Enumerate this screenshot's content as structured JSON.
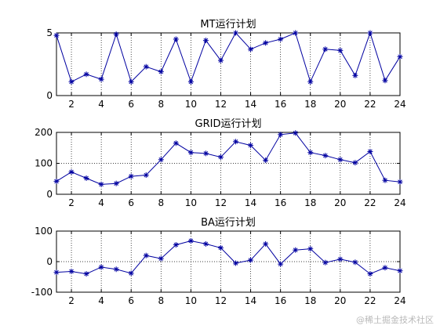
{
  "watermark": "@稀土掘金技术社区",
  "chart_data": [
    {
      "type": "line",
      "title": "MT运行计划",
      "x": [
        1,
        2,
        3,
        4,
        5,
        6,
        7,
        8,
        9,
        10,
        11,
        12,
        13,
        14,
        15,
        16,
        17,
        18,
        19,
        20,
        21,
        22,
        23,
        24
      ],
      "series": [
        {
          "values": [
            4.8,
            1.1,
            1.7,
            1.3,
            4.9,
            1.1,
            2.3,
            1.9,
            4.5,
            1.1,
            4.4,
            2.8,
            5.0,
            3.7,
            4.2,
            4.5,
            5.0,
            1.1,
            3.7,
            3.6,
            1.6,
            5.0,
            1.2,
            3.1
          ],
          "color": "#0000a0",
          "marker": "*"
        }
      ],
      "xlim": [
        1,
        24
      ],
      "ylim": [
        0,
        5
      ],
      "xticks": [
        2,
        4,
        6,
        8,
        10,
        12,
        14,
        16,
        18,
        20,
        22,
        24
      ],
      "yticks": [
        0,
        5
      ],
      "grid": true
    },
    {
      "type": "line",
      "title": "GRID运行计划",
      "x": [
        1,
        2,
        3,
        4,
        5,
        6,
        7,
        8,
        9,
        10,
        11,
        12,
        13,
        14,
        15,
        16,
        17,
        18,
        19,
        20,
        21,
        22,
        23,
        24
      ],
      "series": [
        {
          "values": [
            42,
            72,
            52,
            32,
            35,
            58,
            62,
            112,
            165,
            135,
            132,
            120,
            170,
            158,
            110,
            193,
            198,
            135,
            125,
            112,
            102,
            138,
            45,
            40
          ],
          "color": "#0000a0",
          "marker": "*"
        }
      ],
      "xlim": [
        1,
        24
      ],
      "ylim": [
        0,
        200
      ],
      "xticks": [
        2,
        4,
        6,
        8,
        10,
        12,
        14,
        16,
        18,
        20,
        22,
        24
      ],
      "yticks": [
        0,
        100,
        200
      ],
      "grid": true
    },
    {
      "type": "line",
      "title": "BA运行计划",
      "x": [
        1,
        2,
        3,
        4,
        5,
        6,
        7,
        8,
        9,
        10,
        11,
        12,
        13,
        14,
        15,
        16,
        17,
        18,
        19,
        20,
        21,
        22,
        23,
        24
      ],
      "series": [
        {
          "values": [
            -35,
            -32,
            -40,
            -18,
            -25,
            -38,
            20,
            10,
            55,
            68,
            58,
            45,
            -5,
            5,
            58,
            -8,
            38,
            42,
            -3,
            8,
            -2,
            -40,
            -20,
            -30
          ],
          "color": "#0000a0",
          "marker": "*"
        }
      ],
      "xlim": [
        1,
        24
      ],
      "ylim": [
        -100,
        100
      ],
      "xticks": [
        2,
        4,
        6,
        8,
        10,
        12,
        14,
        16,
        18,
        20,
        22,
        24
      ],
      "yticks": [
        -100,
        0,
        100
      ],
      "grid": true
    }
  ]
}
